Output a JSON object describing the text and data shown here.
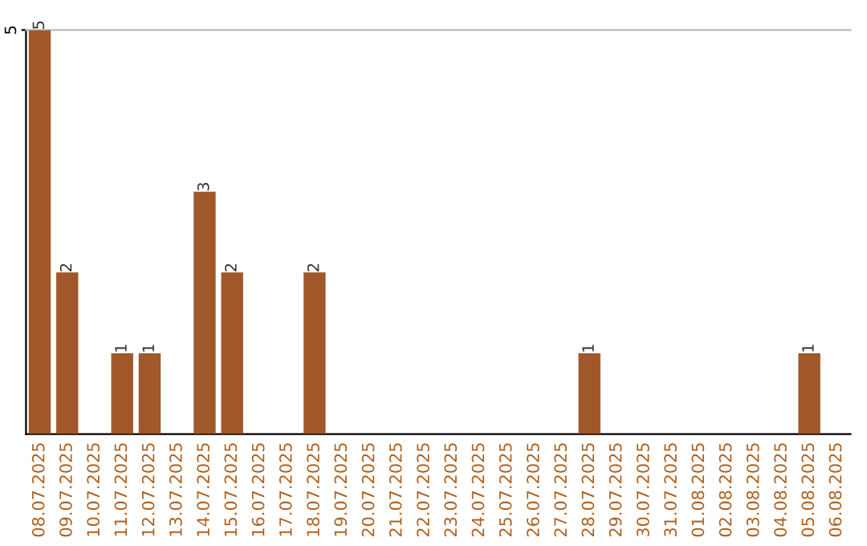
{
  "chart_data": {
    "type": "bar",
    "categories": [
      "08.07.2025",
      "09.07.2025",
      "10.07.2025",
      "11.07.2025",
      "12.07.2025",
      "13.07.2025",
      "14.07.2025",
      "15.07.2025",
      "16.07.2025",
      "17.07.2025",
      "18.07.2025",
      "19.07.2025",
      "20.07.2025",
      "21.07.2025",
      "22.07.2025",
      "23.07.2025",
      "24.07.2025",
      "25.07.2025",
      "26.07.2025",
      "27.07.2025",
      "28.07.2025",
      "29.07.2025",
      "30.07.2025",
      "31.07.2025",
      "01.08.2025",
      "02.08.2025",
      "03.08.2025",
      "04.08.2025",
      "05.08.2025",
      "06.08.2025"
    ],
    "values": [
      5,
      2,
      0,
      1,
      1,
      0,
      3,
      2,
      0,
      0,
      2,
      0,
      0,
      0,
      0,
      0,
      0,
      0,
      0,
      0,
      1,
      0,
      0,
      0,
      0,
      0,
      0,
      0,
      1,
      0
    ],
    "value_labels": [
      "5",
      "2",
      null,
      "1",
      "1",
      null,
      "3",
      "2",
      null,
      null,
      "2",
      null,
      null,
      null,
      null,
      null,
      null,
      null,
      null,
      null,
      "1",
      null,
      null,
      null,
      null,
      null,
      null,
      null,
      "1",
      null
    ],
    "color": "#a0582a",
    "ylim": [
      0,
      5
    ],
    "yticks": [
      5
    ]
  }
}
